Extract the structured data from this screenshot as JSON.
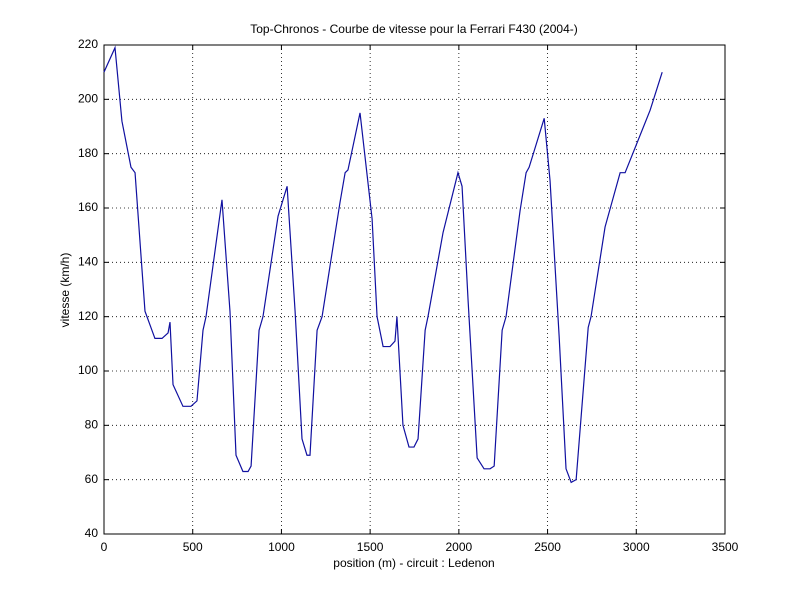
{
  "chart_data": {
    "type": "line",
    "title": "Top-Chronos - Courbe de vitesse pour la Ferrari F430 (2004-)",
    "x_label": "position (m) - circuit : Ledenon",
    "y_label": "vitesse (km/h)",
    "color": "#1010a0",
    "grid": true,
    "xlim": [
      0,
      3500
    ],
    "ylim": [
      40,
      220
    ],
    "xticks": [
      0,
      500,
      1000,
      1500,
      2000,
      2500,
      3000,
      3500
    ],
    "yticks": [
      40,
      60,
      80,
      100,
      120,
      140,
      160,
      180,
      200,
      220
    ],
    "x": [
      0,
      62,
      101,
      152,
      175,
      231,
      287,
      327,
      361,
      372,
      389,
      445,
      490,
      524,
      558,
      575,
      665,
      710,
      744,
      783,
      812,
      829,
      874,
      896,
      981,
      1032,
      1077,
      1116,
      1144,
      1161,
      1201,
      1229,
      1330,
      1359,
      1375,
      1443,
      1511,
      1539,
      1573,
      1612,
      1640,
      1651,
      1685,
      1719,
      1747,
      1770,
      1810,
      1826,
      1911,
      1995,
      2018,
      2052,
      2103,
      2142,
      2176,
      2199,
      2244,
      2266,
      2345,
      2379,
      2396,
      2481,
      2514,
      2565,
      2604,
      2633,
      2661,
      2695,
      2729,
      2745,
      2824,
      2909,
      2937,
      3078,
      3146
    ],
    "values": [
      210,
      219,
      192,
      175,
      173,
      122,
      112,
      112,
      114,
      118,
      95,
      87,
      87,
      89,
      115,
      120,
      163,
      122,
      69,
      63,
      63,
      65,
      115,
      120,
      157,
      168,
      122,
      75,
      69,
      69,
      115,
      120,
      162,
      173,
      174,
      195,
      156,
      120,
      109,
      109,
      111,
      120,
      80,
      72,
      72,
      75,
      115,
      120,
      151,
      173,
      168,
      126,
      68,
      64,
      64,
      65,
      115,
      120,
      159,
      173,
      175,
      193,
      170,
      113,
      64,
      59,
      60,
      88,
      116,
      120,
      153,
      173,
      173,
      196,
      210
    ]
  }
}
